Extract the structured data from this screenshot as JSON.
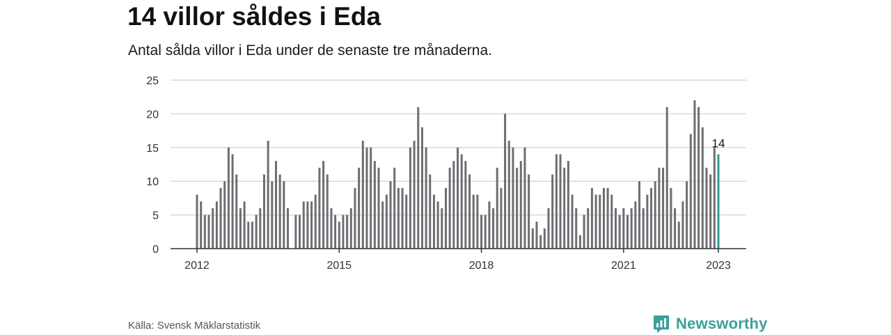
{
  "header": {
    "title": "14 villor såldes i Eda",
    "subtitle": "Antal sålda villor i Eda under de senaste tre månaderna."
  },
  "footer": {
    "source": "Källa: Svensk Mäklarstatistik",
    "brand": "Newsworthy",
    "brand_icon": "newsworthy-logo-icon"
  },
  "colors": {
    "bar": "#6d6d72",
    "highlight": "#2a9d94",
    "grid": "#d9d9d9",
    "axis": "#333333",
    "brand": "#3aa09a"
  },
  "chart_data": {
    "type": "bar",
    "x_start": "2012-01",
    "x_end": "2023-01",
    "frequency": "monthly",
    "x_ticks": [
      "2012",
      "2015",
      "2018",
      "2021",
      "2023"
    ],
    "y_ticks": [
      0,
      5,
      10,
      15,
      20,
      25
    ],
    "ylim": [
      0,
      25
    ],
    "grid": true,
    "highlight_last": true,
    "last_label": "14",
    "values": [
      8,
      7,
      5,
      5,
      6,
      7,
      9,
      10,
      15,
      14,
      11,
      6,
      7,
      4,
      4,
      5,
      6,
      11,
      16,
      10,
      13,
      11,
      10,
      6,
      null,
      5,
      5,
      7,
      7,
      7,
      8,
      12,
      13,
      11,
      6,
      5,
      4,
      5,
      5,
      6,
      9,
      12,
      16,
      15,
      15,
      13,
      12,
      7,
      8,
      10,
      12,
      9,
      9,
      8,
      15,
      16,
      21,
      18,
      15,
      11,
      8,
      7,
      6,
      9,
      12,
      13,
      15,
      14,
      13,
      11,
      8,
      8,
      5,
      5,
      7,
      6,
      12,
      9,
      20,
      16,
      15,
      12,
      13,
      15,
      11,
      3,
      4,
      2,
      3,
      6,
      11,
      14,
      14,
      12,
      13,
      8,
      6,
      2,
      5,
      6,
      9,
      8,
      8,
      9,
      9,
      8,
      6,
      5,
      6,
      5,
      6,
      7,
      10,
      6,
      8,
      9,
      10,
      12,
      12,
      21,
      9,
      6,
      4,
      7,
      10,
      17,
      22,
      21,
      18,
      12,
      11,
      15,
      14
    ]
  }
}
